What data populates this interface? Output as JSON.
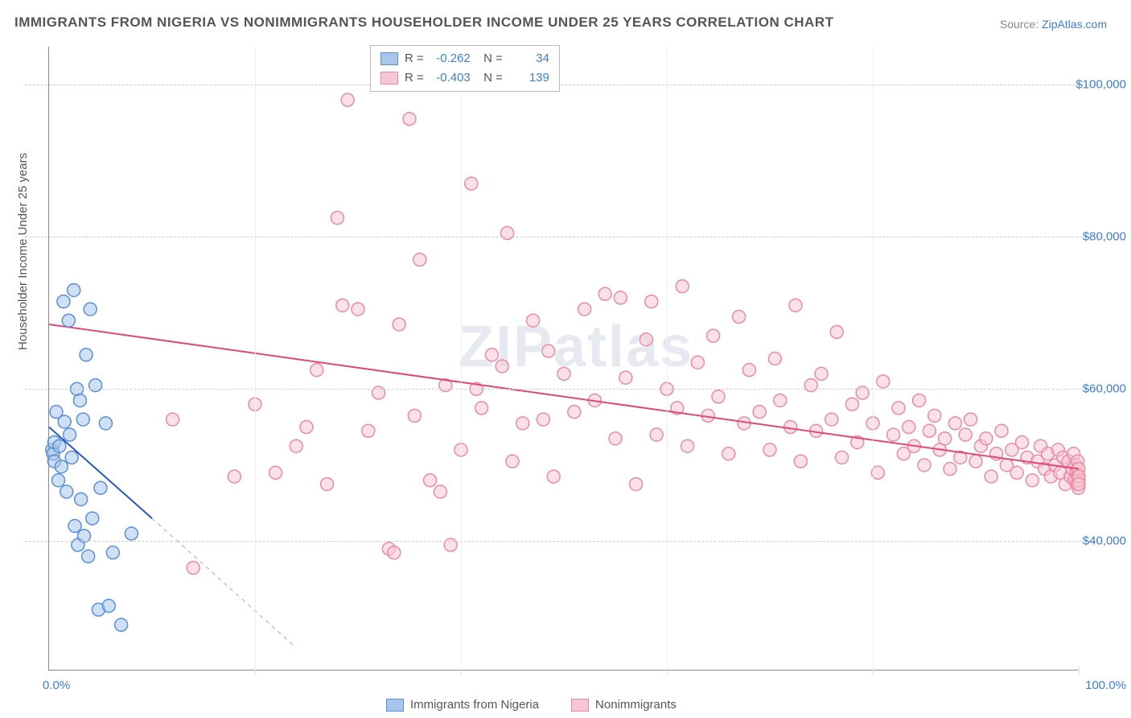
{
  "title": "IMMIGRANTS FROM NIGERIA VS NONIMMIGRANTS HOUSEHOLDER INCOME UNDER 25 YEARS CORRELATION CHART",
  "source_label": "Source:",
  "source_name": "ZipAtlas.com",
  "watermark": "ZIPatlas",
  "ylabel": "Householder Income Under 25 years",
  "chart": {
    "type": "scatter",
    "xlim": [
      0,
      100
    ],
    "ylim": [
      23000,
      105000
    ],
    "ytick_values": [
      40000,
      60000,
      80000,
      100000
    ],
    "ytick_labels": [
      "$40,000",
      "$60,000",
      "$80,000",
      "$100,000"
    ],
    "xtick_labels": {
      "left": "0.0%",
      "right": "100.0%"
    },
    "x_gridlines": [
      20,
      40,
      60,
      80,
      100
    ],
    "background_color": "#ffffff",
    "grid_color": "#cccccc",
    "marker_radius": 8,
    "marker_stroke_width": 1.5,
    "series": [
      {
        "name": "Immigrants from Nigeria",
        "color_fill": "#a8c5eb",
        "color_stroke": "#5b8fd6",
        "swatch_fill": "#a8c5eb",
        "swatch_border": "#5b8fd6",
        "R": "-0.262",
        "N": "34",
        "trend": {
          "x1": 0,
          "y1": 55000,
          "x2": 10,
          "y2": 43000,
          "color": "#2456c4",
          "width": 2
        },
        "trend_ext": {
          "x1": 10,
          "y1": 43000,
          "x2": 24,
          "y2": 26000,
          "color": "#9ab0c8",
          "dash": "5,5",
          "width": 1
        },
        "points": [
          [
            0.3,
            52000
          ],
          [
            0.4,
            51500
          ],
          [
            0.5,
            50500
          ],
          [
            0.5,
            53000
          ],
          [
            0.7,
            57000
          ],
          [
            0.9,
            48000
          ],
          [
            1.0,
            52500
          ],
          [
            1.2,
            49800
          ],
          [
            1.4,
            71500
          ],
          [
            1.5,
            55700
          ],
          [
            1.7,
            46500
          ],
          [
            1.9,
            69000
          ],
          [
            2.0,
            54000
          ],
          [
            2.2,
            51000
          ],
          [
            2.4,
            73000
          ],
          [
            2.5,
            42000
          ],
          [
            2.7,
            60000
          ],
          [
            2.8,
            39500
          ],
          [
            3.0,
            58500
          ],
          [
            3.1,
            45500
          ],
          [
            3.3,
            56000
          ],
          [
            3.4,
            40700
          ],
          [
            3.6,
            64500
          ],
          [
            3.8,
            38000
          ],
          [
            4.0,
            70500
          ],
          [
            4.2,
            43000
          ],
          [
            4.5,
            60500
          ],
          [
            4.8,
            31000
          ],
          [
            5.0,
            47000
          ],
          [
            5.5,
            55500
          ],
          [
            5.8,
            31500
          ],
          [
            6.2,
            38500
          ],
          [
            7.0,
            29000
          ],
          [
            8.0,
            41000
          ]
        ]
      },
      {
        "name": "Nonimmigrants",
        "color_fill": "#f6c6d4",
        "color_stroke": "#e98ba5",
        "swatch_fill": "#f6c6d4",
        "swatch_border": "#e98ba5",
        "R": "-0.403",
        "N": "139",
        "trend": {
          "x1": 0,
          "y1": 68500,
          "x2": 100,
          "y2": 49500,
          "color": "#e04876",
          "width": 2
        },
        "points": [
          [
            12,
            56000
          ],
          [
            14,
            36500
          ],
          [
            18,
            48500
          ],
          [
            20,
            58000
          ],
          [
            22,
            49000
          ],
          [
            24,
            52500
          ],
          [
            25,
            55000
          ],
          [
            26,
            62500
          ],
          [
            27,
            47500
          ],
          [
            28,
            82500
          ],
          [
            28.5,
            71000
          ],
          [
            29,
            98000
          ],
          [
            30,
            70500
          ],
          [
            31,
            54500
          ],
          [
            32,
            59500
          ],
          [
            33,
            39000
          ],
          [
            33.5,
            38500
          ],
          [
            34,
            68500
          ],
          [
            35,
            95500
          ],
          [
            35.5,
            56500
          ],
          [
            36,
            77000
          ],
          [
            37,
            48000
          ],
          [
            38,
            46500
          ],
          [
            38.5,
            60500
          ],
          [
            39,
            39500
          ],
          [
            40,
            52000
          ],
          [
            41,
            87000
          ],
          [
            41.5,
            60000
          ],
          [
            42,
            57500
          ],
          [
            43,
            64500
          ],
          [
            44,
            63000
          ],
          [
            44.5,
            80500
          ],
          [
            45,
            50500
          ],
          [
            46,
            55500
          ],
          [
            47,
            69000
          ],
          [
            48,
            56000
          ],
          [
            48.5,
            65000
          ],
          [
            49,
            48500
          ],
          [
            50,
            62000
          ],
          [
            51,
            57000
          ],
          [
            52,
            70500
          ],
          [
            53,
            58500
          ],
          [
            54,
            72500
          ],
          [
            55,
            53500
          ],
          [
            55.5,
            72000
          ],
          [
            56,
            61500
          ],
          [
            57,
            47500
          ],
          [
            58,
            66500
          ],
          [
            58.5,
            71500
          ],
          [
            59,
            54000
          ],
          [
            60,
            60000
          ],
          [
            61,
            57500
          ],
          [
            61.5,
            73500
          ],
          [
            62,
            52500
          ],
          [
            63,
            63500
          ],
          [
            64,
            56500
          ],
          [
            64.5,
            67000
          ],
          [
            65,
            59000
          ],
          [
            66,
            51500
          ],
          [
            67,
            69500
          ],
          [
            67.5,
            55500
          ],
          [
            68,
            62500
          ],
          [
            69,
            57000
          ],
          [
            70,
            52000
          ],
          [
            70.5,
            64000
          ],
          [
            71,
            58500
          ],
          [
            72,
            55000
          ],
          [
            72.5,
            71000
          ],
          [
            73,
            50500
          ],
          [
            74,
            60500
          ],
          [
            74.5,
            54500
          ],
          [
            75,
            62000
          ],
          [
            76,
            56000
          ],
          [
            76.5,
            67500
          ],
          [
            77,
            51000
          ],
          [
            78,
            58000
          ],
          [
            78.5,
            53000
          ],
          [
            79,
            59500
          ],
          [
            80,
            55500
          ],
          [
            80.5,
            49000
          ],
          [
            81,
            61000
          ],
          [
            82,
            54000
          ],
          [
            82.5,
            57500
          ],
          [
            83,
            51500
          ],
          [
            83.5,
            55000
          ],
          [
            84,
            52500
          ],
          [
            84.5,
            58500
          ],
          [
            85,
            50000
          ],
          [
            85.5,
            54500
          ],
          [
            86,
            56500
          ],
          [
            86.5,
            52000
          ],
          [
            87,
            53500
          ],
          [
            87.5,
            49500
          ],
          [
            88,
            55500
          ],
          [
            88.5,
            51000
          ],
          [
            89,
            54000
          ],
          [
            89.5,
            56000
          ],
          [
            90,
            50500
          ],
          [
            90.5,
            52500
          ],
          [
            91,
            53500
          ],
          [
            91.5,
            48500
          ],
          [
            92,
            51500
          ],
          [
            92.5,
            54500
          ],
          [
            93,
            50000
          ],
          [
            93.5,
            52000
          ],
          [
            94,
            49000
          ],
          [
            94.5,
            53000
          ],
          [
            95,
            51000
          ],
          [
            95.5,
            48000
          ],
          [
            96,
            50500
          ],
          [
            96.3,
            52500
          ],
          [
            96.7,
            49500
          ],
          [
            97,
            51500
          ],
          [
            97.3,
            48500
          ],
          [
            97.7,
            50000
          ],
          [
            98,
            52000
          ],
          [
            98.2,
            49000
          ],
          [
            98.5,
            51000
          ],
          [
            98.7,
            47500
          ],
          [
            99,
            50500
          ],
          [
            99.2,
            48500
          ],
          [
            99.4,
            49500
          ],
          [
            99.5,
            51500
          ],
          [
            99.6,
            48000
          ],
          [
            99.7,
            50000
          ],
          [
            99.8,
            49000
          ],
          [
            99.85,
            47500
          ],
          [
            99.9,
            50500
          ],
          [
            99.92,
            48500
          ],
          [
            99.95,
            49500
          ],
          [
            99.97,
            47000
          ],
          [
            99.98,
            48000
          ],
          [
            99.99,
            49500
          ],
          [
            100,
            48500
          ],
          [
            100,
            47500
          ]
        ]
      }
    ]
  },
  "legend_bottom": [
    {
      "label": "Immigrants from Nigeria",
      "fill": "#a8c5eb",
      "border": "#5b8fd6"
    },
    {
      "label": "Nonimmigrants",
      "fill": "#f6c6d4",
      "border": "#e98ba5"
    }
  ]
}
